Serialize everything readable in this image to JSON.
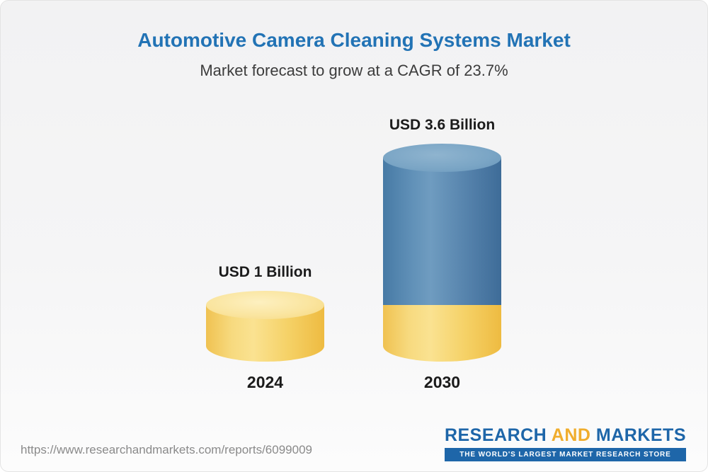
{
  "colors": {
    "title_blue": "#2273b5",
    "subtitle_gray": "#3c3c3c",
    "text_dark": "#1b1b1b",
    "bar_yellow": "#f5cd5f",
    "bar_yellow_top": "#fae5a0",
    "bar_blue": "#4e80aa",
    "bar_blue_top": "#7aa5c5",
    "url_gray": "#8a8a8a",
    "logo_blue": "#1e66a9",
    "logo_gold": "#f0ad2d",
    "card_border": "#e4e4e4"
  },
  "chart_data": {
    "type": "bar",
    "title": "Automotive Camera Cleaning Systems Market",
    "subtitle": "Market forecast to grow at a CAGR of 23.7%",
    "cagr_percent": 23.7,
    "unit": "USD Billion",
    "categories": [
      "2024",
      "2030"
    ],
    "values": [
      1,
      3.6
    ],
    "value_labels": [
      "USD 1 Billion",
      "USD 3.6 Billion"
    ],
    "bar_colors": [
      "#f5cd5f",
      "#4e80aa"
    ],
    "legend": "none",
    "grid": false,
    "ylim": [
      0,
      4
    ]
  },
  "footer": {
    "url": "https://www.researchandmarkets.com/reports/6099009",
    "logo": {
      "word1": "RESEARCH",
      "word2": "AND",
      "word3": "MARKETS",
      "tagline": "THE WORLD'S LARGEST MARKET RESEARCH STORE"
    }
  }
}
